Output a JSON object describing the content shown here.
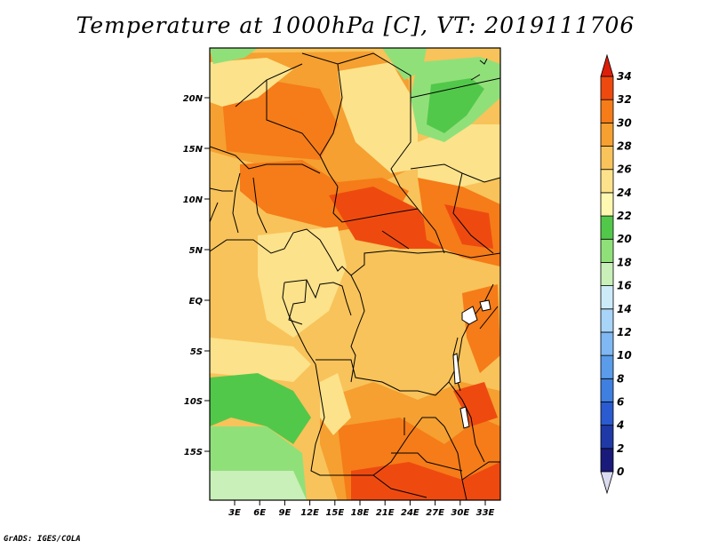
{
  "title": "Temperature at 1000hPa [C], VT: 2019111706",
  "footer": "GrADS: IGES/COLA",
  "map": {
    "lat_ticks": [
      "20N",
      "15N",
      "10N",
      "5N",
      "EQ",
      "5S",
      "10S",
      "15S"
    ],
    "lon_ticks": [
      "3E",
      "6E",
      "9E",
      "12E",
      "15E",
      "18E",
      "21E",
      "24E",
      "27E",
      "30E",
      "33E"
    ]
  },
  "colorbar": {
    "levels": [
      "0",
      "2",
      "4",
      "6",
      "8",
      "10",
      "12",
      "14",
      "16",
      "18",
      "20",
      "22",
      "24",
      "26",
      "28",
      "30",
      "32",
      "34"
    ],
    "colors": [
      "#1a1a7a",
      "#1f3aa6",
      "#2a5bd0",
      "#3f7fe0",
      "#5a9bea",
      "#7fb8f2",
      "#a8d4f7",
      "#cdeaf9",
      "#c8f0b8",
      "#90e07a",
      "#52c84a",
      "#fff8b0",
      "#fce28a",
      "#f8c35a",
      "#f5a030",
      "#f57c18",
      "#ee4a10",
      "#dc1e0a"
    ]
  }
}
